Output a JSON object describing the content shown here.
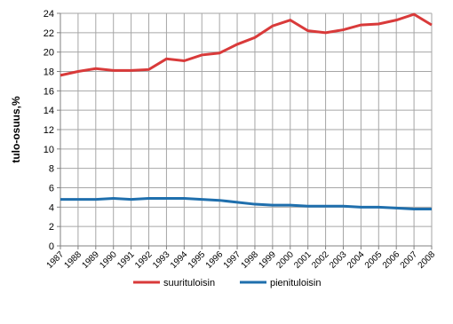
{
  "chart_data": {
    "type": "line",
    "y_label": "tulo-osuus,%",
    "x": [
      "1987",
      "1988",
      "1989",
      "1990",
      "1991",
      "1992",
      "1993",
      "1994",
      "1995",
      "1996",
      "1997",
      "1998",
      "1999",
      "2000",
      "2001",
      "2002",
      "2003",
      "2004",
      "2005",
      "2006",
      "2007",
      "2008"
    ],
    "series": [
      {
        "name": "suurituloisin",
        "color": "#d93a3a",
        "values": [
          17.6,
          18.0,
          18.3,
          18.1,
          18.1,
          18.2,
          19.3,
          19.1,
          19.7,
          19.9,
          20.8,
          21.5,
          22.7,
          23.3,
          22.2,
          22.0,
          22.3,
          22.8,
          22.9,
          23.3,
          23.9,
          22.8
        ]
      },
      {
        "name": "pienituloisin",
        "color": "#1f6fad",
        "values": [
          4.8,
          4.8,
          4.8,
          4.9,
          4.8,
          4.9,
          4.9,
          4.9,
          4.8,
          4.7,
          4.5,
          4.3,
          4.2,
          4.2,
          4.1,
          4.1,
          4.1,
          4.0,
          4.0,
          3.9,
          3.8,
          3.8
        ]
      }
    ],
    "ylim": [
      0,
      24
    ],
    "yticks": [
      0,
      2,
      4,
      6,
      8,
      10,
      12,
      14,
      16,
      18,
      20,
      22,
      24
    ],
    "grid": true,
    "legend": "bottom"
  }
}
